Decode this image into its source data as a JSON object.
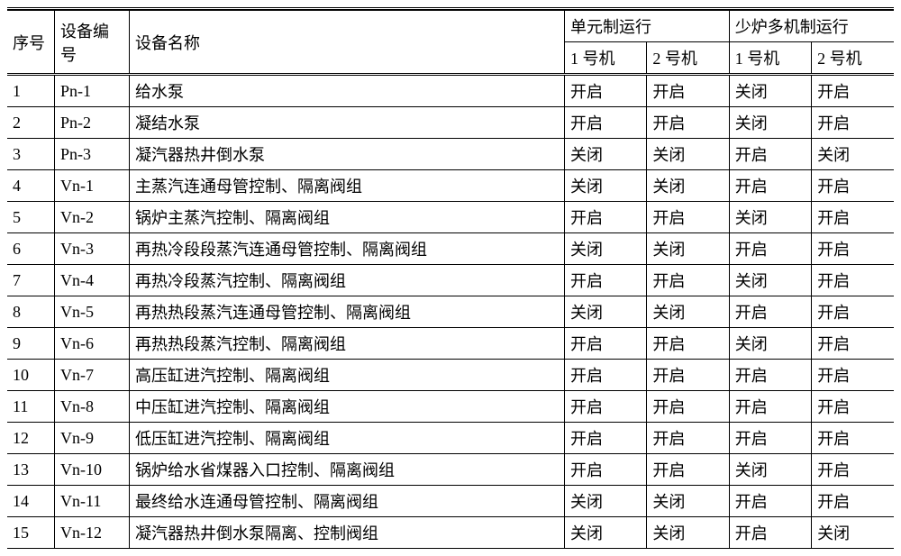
{
  "table": {
    "headers": {
      "seq": "序号",
      "code": "设备编号",
      "name": "设备名称",
      "group_unit": "单元制运行",
      "group_multi": "少炉多机制运行",
      "unit1": "1 号机",
      "unit2": "2 号机",
      "multi1": "1 号机",
      "multi2": "2 号机"
    },
    "rows": [
      {
        "seq": "1",
        "code": "Pn-1",
        "name": "给水泵",
        "u1": "开启",
        "u2": "开启",
        "m1": "关闭",
        "m2": "开启"
      },
      {
        "seq": "2",
        "code": "Pn-2",
        "name": "凝结水泵",
        "u1": "开启",
        "u2": "开启",
        "m1": "关闭",
        "m2": "开启"
      },
      {
        "seq": "3",
        "code": "Pn-3",
        "name": "凝汽器热井倒水泵",
        "u1": "关闭",
        "u2": "关闭",
        "m1": "开启",
        "m2": "关闭"
      },
      {
        "seq": "4",
        "code": "Vn-1",
        "name": "主蒸汽连通母管控制、隔离阀组",
        "u1": "关闭",
        "u2": "关闭",
        "m1": "开启",
        "m2": "开启"
      },
      {
        "seq": "5",
        "code": "Vn-2",
        "name": "锅炉主蒸汽控制、隔离阀组",
        "u1": "开启",
        "u2": "开启",
        "m1": "关闭",
        "m2": "开启"
      },
      {
        "seq": "6",
        "code": "Vn-3",
        "name": "再热冷段段蒸汽连通母管控制、隔离阀组",
        "u1": "关闭",
        "u2": "关闭",
        "m1": "开启",
        "m2": "开启"
      },
      {
        "seq": "7",
        "code": "Vn-4",
        "name": "再热冷段蒸汽控制、隔离阀组",
        "u1": "开启",
        "u2": "开启",
        "m1": "关闭",
        "m2": "开启"
      },
      {
        "seq": "8",
        "code": "Vn-5",
        "name": "再热热段蒸汽连通母管控制、隔离阀组",
        "u1": "关闭",
        "u2": "关闭",
        "m1": "开启",
        "m2": "开启"
      },
      {
        "seq": "9",
        "code": "Vn-6",
        "name": "再热热段蒸汽控制、隔离阀组",
        "u1": "开启",
        "u2": "开启",
        "m1": "关闭",
        "m2": "开启"
      },
      {
        "seq": "10",
        "code": "Vn-7",
        "name": "高压缸进汽控制、隔离阀组",
        "u1": "开启",
        "u2": "开启",
        "m1": "开启",
        "m2": "开启"
      },
      {
        "seq": "11",
        "code": "Vn-8",
        "name": "中压缸进汽控制、隔离阀组",
        "u1": "开启",
        "u2": "开启",
        "m1": "开启",
        "m2": "开启"
      },
      {
        "seq": "12",
        "code": "Vn-9",
        "name": "低压缸进汽控制、隔离阀组",
        "u1": "开启",
        "u2": "开启",
        "m1": "开启",
        "m2": "开启"
      },
      {
        "seq": "13",
        "code": "Vn-10",
        "name": "锅炉给水省煤器入口控制、隔离阀组",
        "u1": "开启",
        "u2": "开启",
        "m1": "关闭",
        "m2": "开启"
      },
      {
        "seq": "14",
        "code": "Vn-11",
        "name": "最终给水连通母管控制、隔离阀组",
        "u1": "关闭",
        "u2": "关闭",
        "m1": "开启",
        "m2": "开启"
      },
      {
        "seq": "15",
        "code": "Vn-12",
        "name": "凝汽器热井倒水泵隔离、控制阀组",
        "u1": "关闭",
        "u2": "关闭",
        "m1": "开启",
        "m2": "关闭"
      }
    ]
  },
  "style": {
    "font_family": "SimSun",
    "font_size_pt": 14,
    "border_color": "#000000",
    "background_color": "#ffffff",
    "text_color": "#000000"
  }
}
